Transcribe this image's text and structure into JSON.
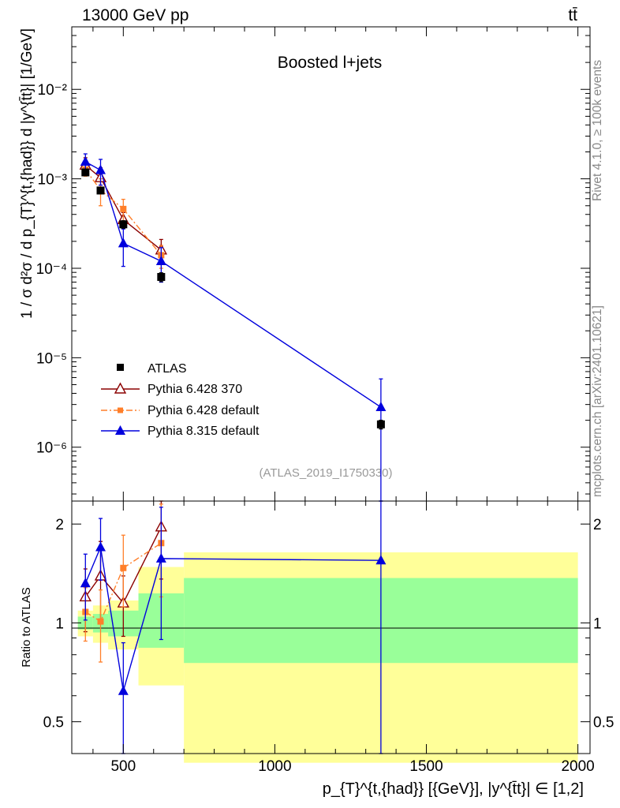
{
  "header": {
    "left": "13000 GeV pp",
    "right": "tt̄"
  },
  "side_labels": {
    "rivet": "Rivet 4.1.0, ≥ 100k events",
    "source": "mcplots.cern.ch [arXiv:2401.10621]"
  },
  "colors": {
    "atlas": "#000000",
    "p6_370": "#8b0000",
    "p6_default": "#ff7f2a",
    "p8_default": "#0000dd",
    "band_inner": "#99ff99",
    "band_outer": "#ffff99"
  },
  "chart_data": [
    {
      "type": "scatter",
      "panel": "main",
      "title": "Boosted l+jets",
      "watermark": "(ATLAS_2019_I1750330)",
      "ylabel": "1 / σ d²σ / d p_{T}^{t,{had}} d |y^{t̄t}| [1/GeV]",
      "yscale": "log",
      "ylim": [
        2.5e-07,
        0.05
      ],
      "xlim": [
        330,
        2040
      ],
      "ytick_labels": [
        "10⁻⁶",
        "10⁻⁵",
        "10⁻⁴",
        "10⁻³",
        "10⁻²"
      ],
      "legend": [
        "ATLAS",
        "Pythia 6.428 370",
        "Pythia 6.428 default",
        "Pythia 8.315 default"
      ],
      "legend_position": "lower-left",
      "series": [
        {
          "name": "ATLAS",
          "style": "square-marker",
          "x": [
            375,
            425,
            500,
            625,
            1350
          ],
          "y": [
            0.00118,
            0.00074,
            0.00031,
            8e-05,
            1.8e-06
          ],
          "yerr_lo": [
            8e-05,
            5e-05,
            3e-05,
            9e-06,
            2e-07
          ],
          "yerr_hi": [
            8e-05,
            5e-05,
            3e-05,
            9e-06,
            2e-07
          ]
        },
        {
          "name": "Pythia 6.428 370",
          "style": "line-open-triangle",
          "x": [
            375,
            425,
            500,
            625
          ],
          "y": [
            0.00142,
            0.00103,
            0.00035,
            0.00016
          ],
          "yerr_lo": [
            0.0003,
            0.0003,
            7e-05,
            5e-05
          ],
          "yerr_hi": [
            0.0003,
            0.0003,
            7e-05,
            5e-05
          ]
        },
        {
          "name": "Pythia 6.428 default",
          "style": "dashdot-square",
          "x": [
            375,
            425,
            500,
            625
          ],
          "y": [
            0.00127,
            0.00075,
            0.00046,
            0.00014
          ],
          "yerr_lo": [
            0.0002,
            0.00025,
            0.00013,
            4e-05
          ],
          "yerr_hi": [
            0.0002,
            0.00025,
            0.00013,
            4e-05
          ]
        },
        {
          "name": "Pythia 8.315 default",
          "style": "line-filled-triangle",
          "x": [
            375,
            425,
            500,
            625,
            1350
          ],
          "y": [
            0.00155,
            0.00125,
            0.00019,
            0.00012,
            2.8e-06
          ],
          "yerr_lo": [
            0.00035,
            0.0004,
            8.5e-05,
            5e-05,
            2.8e-06
          ],
          "yerr_hi": [
            0.00035,
            0.0004,
            8.5e-05,
            5e-05,
            3e-06
          ]
        }
      ]
    },
    {
      "type": "scatter",
      "panel": "ratio",
      "ylabel": "Ratio to ATLAS",
      "xlabel": "p_{T}^{t,{had}} [{GeV}], |y^{t̄t}| ∈ [1,2]",
      "yscale": "log",
      "ylim": [
        0.4,
        2.35
      ],
      "xlim": [
        330,
        2040
      ],
      "xticks": [
        500,
        1000,
        1500,
        2000
      ],
      "xtick_labels": [
        "500",
        "1000",
        "1500",
        "2000"
      ],
      "ytick_labels": [
        "0.5",
        "1",
        "2"
      ],
      "bands": [
        {
          "lo": 350,
          "hi": 400,
          "inner": [
            0.955,
            1.045
          ],
          "outer": [
            0.91,
            1.09
          ]
        },
        {
          "lo": 400,
          "hi": 450,
          "inner": [
            0.935,
            1.065
          ],
          "outer": [
            0.87,
            1.13
          ]
        },
        {
          "lo": 450,
          "hi": 550,
          "inner": [
            0.91,
            1.09
          ],
          "outer": [
            0.83,
            1.17
          ]
        },
        {
          "lo": 550,
          "hi": 700,
          "inner": [
            0.84,
            1.23
          ],
          "outer": [
            0.645,
            1.48
          ]
        },
        {
          "lo": 700,
          "hi": 2000,
          "inner": [
            0.755,
            1.37
          ],
          "outer": [
            0.375,
            1.64
          ]
        }
      ],
      "series": [
        {
          "name": "Pythia 6.428 370",
          "x": [
            375,
            425,
            500,
            625
          ],
          "y": [
            1.2,
            1.39,
            1.15,
            1.96
          ],
          "yerr_lo": [
            0.26,
            0.38,
            0.24,
            0.6
          ],
          "yerr_hi": [
            0.26,
            0.38,
            0.24,
            0.6
          ]
        },
        {
          "name": "Pythia 6.428 default",
          "x": [
            375,
            425,
            500,
            625
          ],
          "y": [
            1.08,
            1.01,
            1.47,
            1.75
          ],
          "yerr_lo": [
            0.2,
            0.25,
            0.35,
            0.55
          ],
          "yerr_hi": [
            0.2,
            0.25,
            0.38,
            0.55
          ]
        },
        {
          "name": "Pythia 8.315 default",
          "x": [
            375,
            425,
            500,
            1350
          ],
          "y": [
            1.32,
            1.7,
            0.62,
            1.55
          ],
          "yerr_lo": [
            0.3,
            0.35,
            0.25,
            1.2
          ],
          "yerr_hi": [
            0.3,
            0.38,
            0.25,
            1.0
          ],
          "x_ext": [
            625
          ],
          "y_ext": [
            1.57
          ],
          "yerr_ext": [
            0.68
          ]
        }
      ]
    }
  ]
}
